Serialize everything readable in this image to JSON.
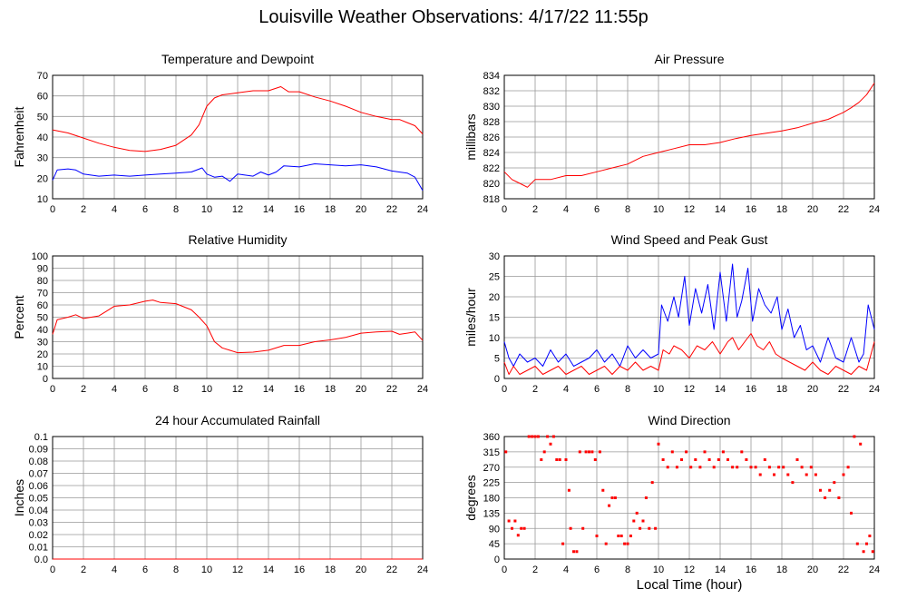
{
  "page": {
    "title": "Louisville Weather Observations: 4/17/22 11:55p"
  },
  "colors": {
    "primary_series": "#ff0000",
    "secondary_series": "#0000ff",
    "grid": "#999999",
    "axis": "#000000"
  },
  "chart_data": [
    {
      "id": "temperature",
      "type": "line",
      "title": "Temperature and Dewpoint",
      "xlabel": "",
      "ylabel": "Fahrenheit",
      "xlim": [
        0,
        24
      ],
      "ylim": [
        10,
        70
      ],
      "xticks": [
        0,
        2,
        4,
        6,
        8,
        10,
        12,
        14,
        16,
        18,
        20,
        22,
        24
      ],
      "yticks": [
        10,
        20,
        30,
        40,
        50,
        60,
        70
      ],
      "grid": true,
      "series": [
        {
          "color": "#ff0000",
          "x": [
            0,
            1,
            2,
            3,
            4,
            5,
            6,
            7,
            8,
            9,
            9.5,
            10,
            10.5,
            11,
            12,
            13,
            14,
            14.8,
            15.3,
            16,
            17,
            18,
            19,
            20,
            21,
            22,
            22.5,
            23,
            23.5,
            24
          ],
          "y": [
            43.5,
            42,
            39.5,
            37,
            35,
            33.5,
            33,
            34,
            36,
            41,
            46,
            55,
            59,
            60.5,
            61.5,
            62.5,
            62.5,
            64.5,
            62,
            62,
            59.5,
            57.5,
            55,
            52,
            50,
            48.5,
            48.5,
            47,
            45.5,
            41.5
          ]
        },
        {
          "color": "#0000ff",
          "x": [
            0,
            0.3,
            1,
            1.5,
            2,
            3,
            4,
            5,
            6,
            7,
            8,
            9,
            9.7,
            10,
            10.5,
            11,
            11.5,
            12,
            13,
            13.5,
            14,
            14.5,
            15,
            16,
            17,
            18,
            19,
            20,
            21,
            22,
            23,
            23.5,
            24
          ],
          "y": [
            19,
            24,
            24.5,
            24,
            22,
            21,
            21.5,
            21,
            21.5,
            22,
            22.5,
            23,
            25,
            22,
            20.5,
            21,
            18.5,
            22,
            21,
            23,
            21.5,
            23,
            26,
            25.5,
            27,
            26.5,
            26,
            26.5,
            25.5,
            23.5,
            22.5,
            20.5,
            14
          ]
        }
      ]
    },
    {
      "id": "pressure",
      "type": "line",
      "title": "Air Pressure",
      "xlabel": "",
      "ylabel": "millibars",
      "xlim": [
        0,
        24
      ],
      "ylim": [
        818,
        834
      ],
      "xticks": [
        0,
        2,
        4,
        6,
        8,
        10,
        12,
        14,
        16,
        18,
        20,
        22,
        24
      ],
      "yticks": [
        818,
        820,
        822,
        824,
        826,
        828,
        830,
        832,
        834
      ],
      "grid": true,
      "series": [
        {
          "color": "#ff0000",
          "x": [
            0,
            0.5,
            1,
            1.5,
            2,
            3,
            4,
            5,
            6,
            7,
            8,
            9,
            10,
            11,
            12,
            13,
            14,
            15,
            16,
            17,
            18,
            19,
            20,
            21,
            22,
            22.5,
            23,
            23.5,
            24
          ],
          "y": [
            821.5,
            820.5,
            820,
            819.5,
            820.5,
            820.5,
            821,
            821,
            821.5,
            822,
            822.5,
            823.5,
            824,
            824.5,
            825,
            825,
            825.3,
            825.8,
            826.2,
            826.5,
            826.8,
            827.2,
            827.8,
            828.3,
            829.2,
            829.8,
            830.5,
            831.5,
            833
          ]
        }
      ]
    },
    {
      "id": "humidity",
      "type": "line",
      "title": "Relative Humidity",
      "xlabel": "",
      "ylabel": "Percent",
      "xlim": [
        0,
        24
      ],
      "ylim": [
        0,
        100
      ],
      "xticks": [
        0,
        2,
        4,
        6,
        8,
        10,
        12,
        14,
        16,
        18,
        20,
        22,
        24
      ],
      "yticks": [
        0,
        10,
        20,
        30,
        40,
        50,
        60,
        70,
        80,
        90,
        100
      ],
      "grid": true,
      "series": [
        {
          "color": "#ff0000",
          "x": [
            0,
            0.3,
            1,
            1.5,
            2,
            3,
            3.5,
            4,
            5,
            6,
            6.5,
            7,
            8,
            9,
            9.5,
            10,
            10.5,
            11,
            12,
            13,
            14,
            15,
            16,
            17,
            18,
            19,
            20,
            21,
            22,
            22.5,
            23,
            23.5,
            24
          ],
          "y": [
            36,
            48,
            50,
            52,
            49,
            51,
            55,
            59,
            60,
            63,
            64,
            62,
            61,
            56,
            50,
            43,
            30,
            25,
            21,
            21.5,
            23,
            27,
            27,
            30,
            31.5,
            33.5,
            37,
            38,
            38.5,
            36,
            37,
            38,
            31
          ]
        }
      ]
    },
    {
      "id": "wind_speed",
      "type": "line",
      "title": "Wind Speed and Peak Gust",
      "xlabel": "",
      "ylabel": "miles/hour",
      "xlim": [
        0,
        24
      ],
      "ylim": [
        0,
        30
      ],
      "xticks": [
        0,
        2,
        4,
        6,
        8,
        10,
        12,
        14,
        16,
        18,
        20,
        22,
        24
      ],
      "yticks": [
        0,
        5,
        10,
        15,
        20,
        25,
        30
      ],
      "grid": true,
      "series": [
        {
          "color": "#0000ff",
          "x": [
            0,
            0.3,
            0.6,
            1,
            1.5,
            2,
            2.5,
            3,
            3.5,
            4,
            4.5,
            5,
            5.5,
            6,
            6.5,
            7,
            7.5,
            8,
            8.5,
            9,
            9.5,
            10,
            10.2,
            10.6,
            11,
            11.3,
            11.7,
            12,
            12.4,
            12.8,
            13.2,
            13.6,
            14,
            14.4,
            14.8,
            15.1,
            15.4,
            15.8,
            16.1,
            16.5,
            16.9,
            17.3,
            17.7,
            18,
            18.4,
            18.8,
            19.2,
            19.6,
            20,
            20.5,
            21,
            21.5,
            22,
            22.5,
            23,
            23.3,
            23.6,
            24
          ],
          "y": [
            9,
            5,
            3,
            6,
            4,
            5,
            3,
            7,
            4,
            6,
            3,
            4,
            5,
            7,
            4,
            6,
            3,
            8,
            5,
            7,
            5,
            6,
            18,
            14,
            20,
            15,
            25,
            13,
            22,
            16,
            23,
            12,
            26,
            14,
            28,
            15,
            19,
            27,
            14,
            22,
            18,
            16,
            20,
            12,
            17,
            10,
            13,
            7,
            8,
            4,
            10,
            5,
            4,
            10,
            4,
            6,
            18,
            12
          ]
        },
        {
          "color": "#ff0000",
          "x": [
            0,
            0.3,
            0.6,
            1,
            1.5,
            2,
            2.5,
            3,
            3.5,
            4,
            4.5,
            5,
            5.5,
            6,
            6.5,
            7,
            7.5,
            8,
            8.5,
            9,
            9.5,
            10,
            10.3,
            10.7,
            11,
            11.5,
            12,
            12.5,
            13,
            13.5,
            14,
            14.5,
            14.8,
            15.2,
            15.6,
            16,
            16.4,
            16.8,
            17.2,
            17.6,
            18,
            18.5,
            19,
            19.5,
            20,
            20.5,
            21,
            21.5,
            22,
            22.5,
            23,
            23.5,
            24
          ],
          "y": [
            4,
            1,
            3,
            1,
            2,
            3,
            1,
            2,
            3,
            1,
            2,
            3,
            1,
            2,
            3,
            1,
            3,
            2,
            4,
            2,
            3,
            2,
            7,
            6,
            8,
            7,
            5,
            8,
            7,
            9,
            6,
            9,
            10,
            7,
            9,
            11,
            8,
            7,
            9,
            6,
            5,
            4,
            3,
            2,
            4,
            2,
            1,
            3,
            2,
            1,
            3,
            2,
            9
          ]
        }
      ]
    },
    {
      "id": "rainfall",
      "type": "line",
      "title": "24 hour Accumulated Rainfall",
      "xlabel": "",
      "ylabel": "Inches",
      "xlim": [
        0,
        24
      ],
      "ylim": [
        0,
        0.1
      ],
      "xticks": [
        0,
        2,
        4,
        6,
        8,
        10,
        12,
        14,
        16,
        18,
        20,
        22,
        24
      ],
      "yticks": [
        0.0,
        0.01,
        0.02,
        0.03,
        0.04,
        0.05,
        0.06,
        0.07,
        0.08,
        0.09,
        0.1
      ],
      "ytick_labels": [
        "0.0",
        "0.01",
        "0.02",
        "0.03",
        "0.04",
        "0.05",
        "0.06",
        "0.07",
        "0.08",
        "0.09",
        "0.1"
      ],
      "grid": true,
      "series": [
        {
          "color": "#ff0000",
          "x": [
            0,
            24
          ],
          "y": [
            0,
            0
          ]
        }
      ]
    },
    {
      "id": "wind_direction",
      "type": "scatter",
      "title": "Wind Direction",
      "xlabel": "Local Time (hour)",
      "ylabel": "degrees",
      "xlim": [
        0,
        24
      ],
      "ylim": [
        0,
        360
      ],
      "xticks": [
        0,
        2,
        4,
        6,
        8,
        10,
        12,
        14,
        16,
        18,
        20,
        22,
        24
      ],
      "yticks": [
        0,
        45,
        90,
        135,
        180,
        225,
        270,
        315,
        360
      ],
      "grid": true,
      "series": [
        {
          "color": "#ff0000",
          "x": [
            0.1,
            0.3,
            0.5,
            0.7,
            0.9,
            1.1,
            1.3,
            1.6,
            1.8,
            2.0,
            2.2,
            2.4,
            2.6,
            2.8,
            3.0,
            3.2,
            3.4,
            3.6,
            3.8,
            4.0,
            4.2,
            4.3,
            4.5,
            4.7,
            4.9,
            5.1,
            5.3,
            5.5,
            5.7,
            5.9,
            6.0,
            6.2,
            6.4,
            6.6,
            6.8,
            7.0,
            7.2,
            7.4,
            7.6,
            7.8,
            8.0,
            8.2,
            8.4,
            8.6,
            8.8,
            9.0,
            9.2,
            9.4,
            9.6,
            9.8,
            10.0,
            10.3,
            10.6,
            10.9,
            11.2,
            11.5,
            11.8,
            12.1,
            12.4,
            12.7,
            13.0,
            13.3,
            13.6,
            13.9,
            14.2,
            14.5,
            14.8,
            15.1,
            15.4,
            15.7,
            16.0,
            16.3,
            16.6,
            16.9,
            17.2,
            17.5,
            17.8,
            18.1,
            18.4,
            18.7,
            19.0,
            19.3,
            19.6,
            19.9,
            20.2,
            20.5,
            20.8,
            21.1,
            21.4,
            21.7,
            22.0,
            22.3,
            22.5,
            22.7,
            22.9,
            23.1,
            23.3,
            23.5,
            23.7,
            23.9
          ],
          "y": [
            315,
            112,
            90,
            112,
            70,
            90,
            90,
            360,
            360,
            360,
            360,
            292,
            315,
            360,
            338,
            360,
            292,
            292,
            45,
            292,
            202,
            90,
            22,
            22,
            315,
            90,
            315,
            315,
            315,
            292,
            68,
            315,
            202,
            45,
            157,
            180,
            180,
            68,
            68,
            45,
            45,
            68,
            112,
            135,
            90,
            112,
            180,
            90,
            225,
            90,
            338,
            292,
            270,
            315,
            270,
            292,
            315,
            270,
            292,
            270,
            315,
            292,
            270,
            292,
            315,
            292,
            270,
            270,
            315,
            292,
            270,
            270,
            248,
            292,
            270,
            248,
            270,
            270,
            248,
            225,
            292,
            270,
            248,
            270,
            248,
            202,
            180,
            202,
            225,
            180,
            248,
            270,
            135,
            360,
            45,
            338,
            22,
            45,
            68,
            22
          ]
        }
      ]
    }
  ]
}
